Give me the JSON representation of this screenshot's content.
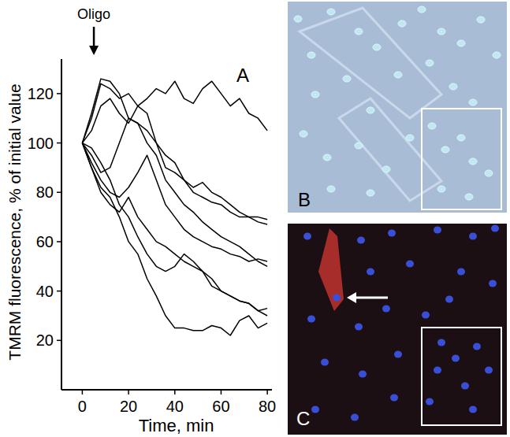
{
  "chart_data": {
    "type": "line",
    "panel_label": "A",
    "x_label": "Time, min",
    "y_label": "TMRM fluorescence, % of initial value",
    "annotations": [
      {
        "text": "Oligo",
        "x": 5
      }
    ],
    "x": [
      0,
      4,
      8,
      12,
      16,
      20,
      24,
      28,
      32,
      36,
      40,
      44,
      48,
      52,
      56,
      60,
      64,
      68,
      72,
      76,
      80
    ],
    "series": [
      {
        "color": "#000000",
        "values": [
          100,
          110,
          124,
          122,
          118,
          120,
          115,
          118,
          122,
          120,
          125,
          118,
          116,
          122,
          125,
          120,
          115,
          118,
          112,
          110,
          105
        ]
      },
      {
        "color": "#000000",
        "values": [
          100,
          112,
          126,
          125,
          120,
          110,
          108,
          105,
          100,
          95,
          92,
          85,
          80,
          78,
          76,
          75,
          72,
          70,
          70,
          68,
          67
        ]
      },
      {
        "color": "#000000",
        "values": [
          100,
          105,
          115,
          118,
          112,
          108,
          115,
          112,
          100,
          90,
          88,
          85,
          82,
          84,
          80,
          78,
          75,
          72,
          70,
          70,
          69
        ]
      },
      {
        "color": "#000000",
        "values": [
          100,
          95,
          88,
          90,
          100,
          110,
          108,
          100,
          95,
          85,
          80,
          75,
          72,
          68,
          65,
          62,
          60,
          58,
          55,
          52,
          50
        ]
      },
      {
        "color": "#000000",
        "values": [
          100,
          92,
          85,
          80,
          78,
          82,
          88,
          95,
          85,
          75,
          70,
          65,
          62,
          60,
          58,
          57,
          55,
          54,
          52,
          53,
          52
        ]
      },
      {
        "color": "#000000",
        "values": [
          100,
          90,
          80,
          75,
          72,
          78,
          70,
          65,
          60,
          58,
          55,
          52,
          50,
          48,
          45,
          40,
          38,
          36,
          35,
          32,
          30
        ]
      },
      {
        "color": "#000000",
        "values": [
          100,
          90,
          82,
          78,
          70,
          60,
          55,
          45,
          38,
          30,
          25,
          25,
          24,
          24,
          26,
          25,
          22,
          28,
          30,
          25,
          27
        ]
      },
      {
        "color": "#000000",
        "values": [
          100,
          98,
          92,
          85,
          75,
          70,
          62,
          55,
          50,
          48,
          50,
          55,
          52,
          48,
          42,
          40,
          38,
          36,
          35,
          32,
          33
        ]
      }
    ],
    "xlim": [
      -9,
      82
    ],
    "ylim": [
      0,
      134
    ],
    "xticks": [
      0,
      20,
      40,
      60,
      80
    ],
    "yticks": [
      20,
      40,
      60,
      80,
      100,
      120
    ],
    "grid": false
  },
  "images": [
    {
      "panel_label": "B"
    },
    {
      "panel_label": "C"
    }
  ]
}
